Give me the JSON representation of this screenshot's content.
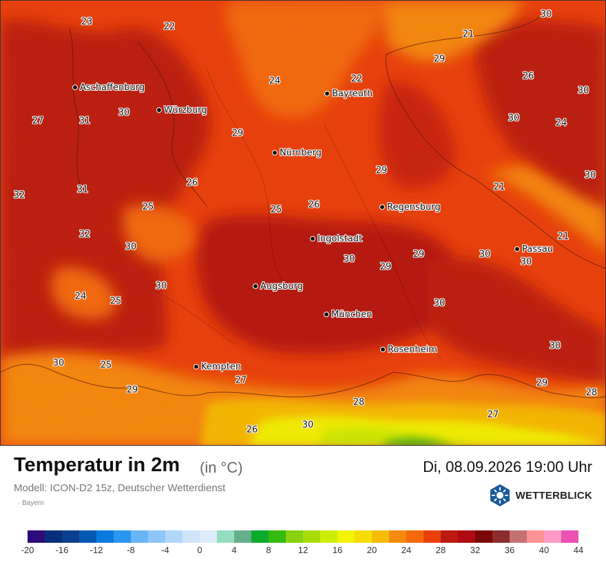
{
  "header": {
    "title": "Temperatur in 2m",
    "unit": "(in °C)",
    "datetime": "Di, 08.09.2026 19:00 Uhr",
    "model": "Modell: ICON-D2 15z, Deutscher Wetterdienst",
    "region": "Bayern"
  },
  "brand": {
    "name": "WETTERBLICK",
    "icon": "sun-logo-icon",
    "color": "#1a5a9a"
  },
  "cities": [
    {
      "id": "aschaffenburg",
      "name": "Aschaffenburg"
    },
    {
      "id": "wuerzburg",
      "name": "Würzburg"
    },
    {
      "id": "bayreuth",
      "name": "Bayreuth"
    },
    {
      "id": "nuernberg",
      "name": "Nürnberg"
    },
    {
      "id": "regensburg",
      "name": "Regensburg"
    },
    {
      "id": "ingolstadt",
      "name": "Ingolstadt"
    },
    {
      "id": "passau",
      "name": "Passau"
    },
    {
      "id": "augsburg",
      "name": "Augsburg"
    },
    {
      "id": "muenchen",
      "name": "München"
    },
    {
      "id": "rosenheim",
      "name": "Rosenheim"
    },
    {
      "id": "kempten",
      "name": "Kempten"
    }
  ],
  "temperature_labels": [
    "23",
    "22",
    "30",
    "21",
    "29",
    "26",
    "30",
    "24",
    "22",
    "27",
    "31",
    "30",
    "29",
    "30",
    "24",
    "29",
    "26",
    "21",
    "30",
    "32",
    "31",
    "25",
    "25",
    "26",
    "21",
    "32",
    "30",
    "30",
    "29",
    "29",
    "30",
    "30",
    "30",
    "24",
    "25",
    "30",
    "30",
    "25",
    "27",
    "30",
    "29",
    "29",
    "28",
    "28",
    "27",
    "30",
    "26"
  ],
  "legend": {
    "colors": [
      "#2e0a7a",
      "#0a2f7a",
      "#0b3e8c",
      "#0559b5",
      "#0a79e0",
      "#2a96f0",
      "#6ab5f5",
      "#8fc6f7",
      "#b2d7f9",
      "#cfe5fb",
      "#ddecfc",
      "#95dcc0",
      "#64b08a",
      "#0cab2a",
      "#33bb0f",
      "#88d20e",
      "#aadd07",
      "#ccee06",
      "#f2f305",
      "#f6dd05",
      "#f6bb05",
      "#f68a0b",
      "#f46a0b",
      "#e9400a",
      "#bb1a0f",
      "#b00a12",
      "#7a0708",
      "#8b2d2c",
      "#c47270",
      "#ff9292",
      "#ff9ac6",
      "#eb52b3"
    ],
    "labels": [
      "-20",
      "-16",
      "-12",
      "-8",
      "-4",
      "0",
      "4",
      "8",
      "12",
      "16",
      "20",
      "24",
      "28",
      "32",
      "36",
      "40",
      "44"
    ]
  }
}
